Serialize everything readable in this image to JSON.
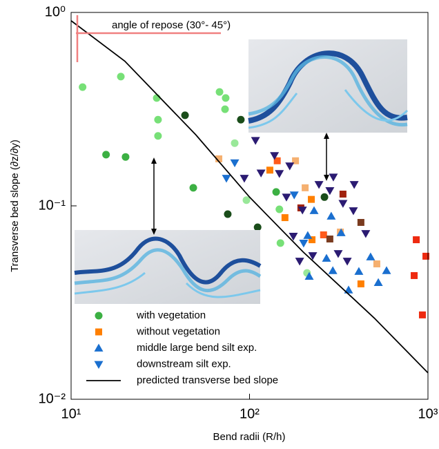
{
  "chart_data": {
    "type": "scatter",
    "xlabel": "Bend radii (R/h)",
    "ylabel": "Transverse bed slope (∂z/∂y)",
    "annotation": "angle of repose (30°- 45°)",
    "xscale": "log",
    "yscale": "log",
    "xlim": [
      10,
      1000
    ],
    "ylim": [
      0.01,
      1
    ],
    "xticks": [
      {
        "value": 10,
        "label": "10¹"
      },
      {
        "value": 100,
        "label": "10²"
      },
      {
        "value": 1000,
        "label": "10³"
      }
    ],
    "yticks": [
      {
        "value": 0.01,
        "label": "10⁻²"
      },
      {
        "value": 0.1,
        "label": "10⁻¹"
      },
      {
        "value": 1,
        "label": "10⁰"
      }
    ],
    "legend": "lower left",
    "series": [
      {
        "name": "with vegetation",
        "marker": "circle",
        "color": "#3cb043",
        "x": [
          11.6,
          19.0,
          30.2,
          30.7,
          30.7,
          67.9,
          73.5,
          72.9,
          82.6,
          96.1,
          147,
          149,
          210,
          15.7,
          20.2,
          48.4,
          141,
          43.5,
          89.4,
          75.5,
          111,
          263
        ],
        "values": [
          0.411,
          0.466,
          0.361,
          0.279,
          0.23,
          0.388,
          0.361,
          0.316,
          0.211,
          0.107,
          0.096,
          0.0642,
          0.045,
          0.184,
          0.179,
          0.124,
          0.118,
          0.294,
          0.279,
          0.0906,
          0.0775,
          0.111
        ],
        "point_colors": [
          "#77e077",
          "#77e077",
          "#77e077",
          "#77e077",
          "#77e077",
          "#77e077",
          "#77e077",
          "#77e077",
          "#99e899",
          "#99e899",
          "#77e077",
          "#77e077",
          "#99e899",
          "#3cb043",
          "#3cb043",
          "#3cb043",
          "#3cb043",
          "#1a4d1a",
          "#1a4d1a",
          "#1a4d1a",
          "#1a4d1a",
          "#1a4d1a"
        ]
      },
      {
        "name": "without vegetation",
        "marker": "square",
        "color": "#ff7f00",
        "x": [
          67.3,
          143,
          130,
          181,
          205,
          194,
          158,
          222,
          334,
          421,
          224,
          260,
          323,
          282,
          517,
          421,
          860,
          974,
          837,
          931
        ],
        "values": [
          0.175,
          0.171,
          0.153,
          0.171,
          0.124,
          0.0976,
          0.0869,
          0.108,
          0.115,
          0.0821,
          0.0668,
          0.0708,
          0.0732,
          0.0674,
          0.0501,
          0.0395,
          0.0668,
          0.0549,
          0.0436,
          0.0273
        ],
        "point_colors": [
          "#f5b070",
          "#ff5a1a",
          "#ff7f00",
          "#f5b070",
          "#f5b070",
          "#a0220e",
          "#ff7f00",
          "#ff7f00",
          "#a0220e",
          "#7a3b1f",
          "#ff7f00",
          "#ff5a1a",
          "#f5b070",
          "#7a3b1f",
          "#f5b070",
          "#ff7f00",
          "#ee2a10",
          "#ee2a10",
          "#ee2a10",
          "#ee2a10"
        ]
      },
      {
        "name": "middle large bend silt exp.",
        "marker": "triangle-up",
        "color": "#1a6fcf",
        "x": [
          230,
          287,
          212,
          326,
          270,
          216,
          293,
          359,
          410,
          527,
          586,
          477
        ],
        "values": [
          0.0944,
          0.0884,
          0.0702,
          0.0726,
          0.0535,
          0.0432,
          0.0462,
          0.0367,
          0.0458,
          0.0401,
          0.0462,
          0.0544
        ]
      },
      {
        "name": "downstream silt exp.",
        "marker": "triangle-down",
        "color": "#1a6fcf",
        "x": [
          74.2,
          82.6,
          93.5,
          108,
          116,
          138,
          147,
          168,
          161,
          178,
          198,
          245,
          282,
          295,
          386,
          334,
          382,
          176,
          201,
          191,
          226,
          314,
          353,
          448
        ],
        "values": [
          0.139,
          0.167,
          0.139,
          0.218,
          0.148,
          0.182,
          0.147,
          0.161,
          0.111,
          0.114,
          0.0952,
          0.129,
          0.12,
          0.141,
          0.129,
          0.103,
          0.0944,
          0.0697,
          0.0642,
          0.0518,
          0.0553,
          0.0567,
          0.0518,
          0.072
        ],
        "point_colors": [
          "#1a6fcf",
          "#1a6fcf",
          "#2b1b72",
          "#2b1b72",
          "#2b1b72",
          "#2b1b72",
          "#2b1b72",
          "#2b1b72",
          "#2b1b72",
          "#1a6fcf",
          "#2b1b72",
          "#2b1b72",
          "#2b1b72",
          "#2b1b72",
          "#2b1b72",
          "#2b1b72",
          "#2b1b72",
          "#2b1b72",
          "#1a6fcf",
          "#2b1b72",
          "#2b1b72",
          "#2b1b72",
          "#2b1b72",
          "#2b1b72"
        ]
      },
      {
        "name": "predicted transverse bed slope",
        "marker": "line",
        "color": "#000000",
        "x": [
          10,
          20,
          50,
          100,
          200,
          500,
          1000
        ],
        "values": [
          0.906,
          0.56,
          0.233,
          0.111,
          0.0577,
          0.0263,
          0.0137
        ]
      }
    ]
  }
}
